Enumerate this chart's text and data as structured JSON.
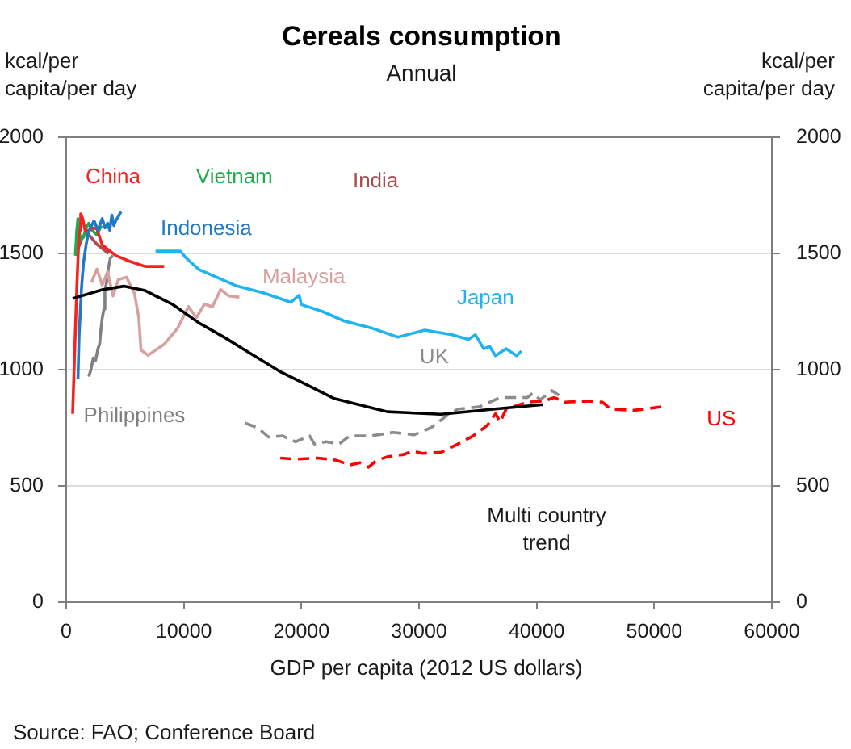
{
  "chart_data": {
    "type": "line",
    "title": "Cereals consumption",
    "subtitle": "Annual",
    "xlabel": "GDP per capita (2012 US dollars)",
    "ylabel": "kcal/per capita/per day",
    "y2label": "kcal/per capita/per day",
    "annotations": [
      "Source: FAO; Conference Board"
    ],
    "xlim": [
      0,
      60000
    ],
    "xticks": [
      0,
      10000,
      20000,
      30000,
      40000,
      50000,
      60000
    ],
    "ylim": [
      0,
      2000
    ],
    "yticks": [
      0,
      500,
      1000,
      1500,
      2000
    ],
    "y2lim": [
      0,
      2000
    ],
    "y2ticks": [
      0,
      500,
      1000,
      1500,
      2000
    ],
    "grid": "y",
    "line_style": "solid",
    "series": [
      {
        "name": "India",
        "color": "#a94b4f",
        "x": [
          1000,
          1300,
          1700,
          2100,
          2600,
          3100,
          3600
        ],
        "values": [
          1520,
          1560,
          1590,
          1570,
          1540,
          1520,
          1500
        ]
      },
      {
        "name": "Vietnam",
        "color": "#1faa50",
        "x": [
          780,
          900,
          1000,
          1200,
          1470,
          1700,
          1920,
          2200,
          2600,
          3000
        ],
        "values": [
          1490,
          1600,
          1650,
          1560,
          1570,
          1610,
          1630,
          1600,
          1580,
          1620
        ]
      },
      {
        "name": "China",
        "color": "#f52222",
        "x": [
          550,
          700,
          900,
          1100,
          1235,
          1400,
          1600,
          1920,
          2200,
          2600,
          3060,
          4210,
          5350,
          6720,
          8330
        ],
        "values": [
          810,
          1050,
          1350,
          1600,
          1670,
          1650,
          1600,
          1597,
          1610,
          1606,
          1537,
          1491,
          1467,
          1444,
          1444
        ]
      },
      {
        "name": "Indonesia",
        "color": "#1f78c8",
        "x": [
          1000,
          1100,
          1300,
          1470,
          1700,
          1920,
          2150,
          2370,
          2700,
          3060,
          3300,
          3520,
          3700,
          3880,
          4050,
          4210,
          4450,
          4660
        ],
        "values": [
          960,
          1150,
          1350,
          1460,
          1540,
          1595,
          1620,
          1640,
          1600,
          1650,
          1610,
          1630,
          1600,
          1665,
          1620,
          1640,
          1660,
          1680
        ]
      },
      {
        "name": "Philippines",
        "color": "#808080",
        "x": [
          1920,
          2100,
          2300,
          2500,
          2700,
          2840,
          2950,
          3060,
          3200,
          3290,
          3450,
          3600,
          3750,
          3980
        ],
        "values": [
          970,
          1000,
          1050,
          1040,
          1090,
          1110,
          1170,
          1220,
          1260,
          1340,
          1380,
          1440,
          1480,
          1490
        ]
      },
      {
        "name": "Malaysia",
        "color": "#d9a0a0",
        "x": [
          2150,
          2610,
          3060,
          3520,
          3980,
          4430,
          5120,
          5800,
          6170,
          6360,
          6960,
          8330,
          9470,
          10390,
          11070,
          11760,
          12440,
          13130,
          13810,
          14720
        ],
        "values": [
          1375,
          1433,
          1364,
          1421,
          1317,
          1387,
          1398,
          1329,
          1224,
          1085,
          1062,
          1109,
          1178,
          1271,
          1224,
          1282,
          1271,
          1345,
          1317,
          1312
        ]
      },
      {
        "name": "Japan",
        "color": "#1fb4f0",
        "x": [
          7600,
          9700,
          10200,
          11300,
          12700,
          14500,
          16800,
          19100,
          19800,
          20000,
          21800,
          23600,
          25900,
          28200,
          30500,
          32800,
          34200,
          34800,
          35500,
          36000,
          36500,
          37400,
          38300,
          38700
        ],
        "values": [
          1510,
          1510,
          1480,
          1430,
          1400,
          1360,
          1330,
          1290,
          1320,
          1280,
          1250,
          1210,
          1180,
          1140,
          1170,
          1150,
          1130,
          1150,
          1090,
          1100,
          1060,
          1090,
          1060,
          1080
        ]
      },
      {
        "name": "UK",
        "color": "#8c8c8c",
        "line_style": "dashed",
        "x": [
          15200,
          16300,
          17200,
          18400,
          19500,
          20700,
          21100,
          22100,
          23200,
          24100,
          25900,
          27800,
          29600,
          31000,
          32300,
          33300,
          35100,
          36900,
          37800,
          39200,
          39700,
          40300,
          41300,
          41900
        ],
        "values": [
          770,
          750,
          710,
          715,
          690,
          715,
          680,
          690,
          680,
          715,
          715,
          730,
          720,
          750,
          800,
          830,
          840,
          880,
          880,
          880,
          900,
          870,
          910,
          890
        ]
      },
      {
        "name": "US",
        "color": "#ff0000",
        "line_style": "dashed",
        "x": [
          18200,
          19500,
          21400,
          23000,
          24100,
          25000,
          25700,
          26400,
          27300,
          28700,
          29400,
          30300,
          31900,
          33300,
          34600,
          35800,
          36500,
          36900,
          37400,
          39200,
          40600,
          41500,
          42400,
          44200,
          45600,
          46300,
          48300,
          50600
        ],
        "values": [
          620,
          615,
          620,
          610,
          590,
          600,
          580,
          610,
          625,
          635,
          650,
          640,
          645,
          680,
          715,
          760,
          810,
          775,
          830,
          860,
          865,
          880,
          860,
          865,
          860,
          830,
          825,
          840
        ]
      },
      {
        "name": "Multi country trend",
        "color": "#000000",
        "x": [
          550,
          3060,
          4890,
          6720,
          9010,
          11290,
          13580,
          15000,
          18150,
          20440,
          22730,
          27300,
          31870,
          36450,
          40560
        ],
        "values": [
          1306,
          1344,
          1359,
          1340,
          1282,
          1201,
          1135,
          1090,
          993,
          935,
          877,
          819,
          808,
          831,
          850
        ]
      }
    ]
  }
}
